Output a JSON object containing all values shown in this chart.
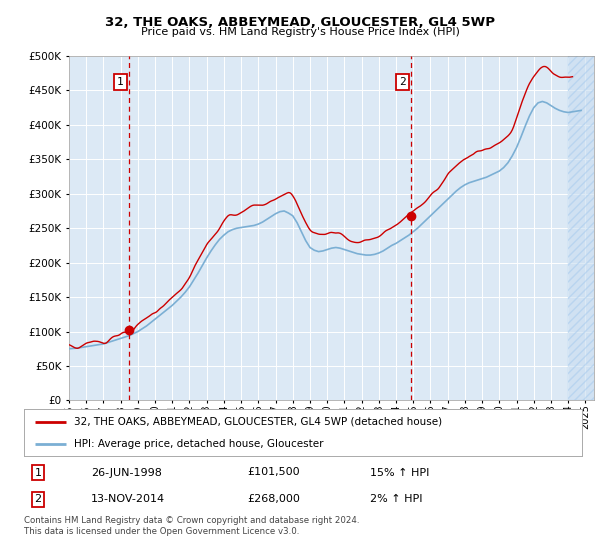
{
  "title": "32, THE OAKS, ABBEYMEAD, GLOUCESTER, GL4 5WP",
  "subtitle": "Price paid vs. HM Land Registry's House Price Index (HPI)",
  "bg_color": "#dce9f5",
  "red_color": "#cc0000",
  "blue_color": "#7bafd4",
  "grid_color": "#ffffff",
  "sale1_date": 1998.49,
  "sale1_price": 101500,
  "sale1_label": "1",
  "sale2_date": 2014.87,
  "sale2_price": 268000,
  "sale2_label": "2",
  "legend_entry1": "32, THE OAKS, ABBEYMEAD, GLOUCESTER, GL4 5WP (detached house)",
  "legend_entry2": "HPI: Average price, detached house, Gloucester",
  "table_row1": [
    "1",
    "26-JUN-1998",
    "£101,500",
    "15% ↑ HPI"
  ],
  "table_row2": [
    "2",
    "13-NOV-2014",
    "£268,000",
    "2% ↑ HPI"
  ],
  "footer": "Contains HM Land Registry data © Crown copyright and database right 2024.\nThis data is licensed under the Open Government Licence v3.0.",
  "ylim": [
    0,
    500000
  ],
  "xlim": [
    1995.0,
    2025.5
  ],
  "yticks": [
    0,
    50000,
    100000,
    150000,
    200000,
    250000,
    300000,
    350000,
    400000,
    450000,
    500000
  ],
  "hpi_years": [
    1995.0,
    1995.25,
    1995.5,
    1995.75,
    1996.0,
    1996.25,
    1996.5,
    1996.75,
    1997.0,
    1997.25,
    1997.5,
    1997.75,
    1998.0,
    1998.25,
    1998.5,
    1998.75,
    1999.0,
    1999.25,
    1999.5,
    1999.75,
    2000.0,
    2000.25,
    2000.5,
    2000.75,
    2001.0,
    2001.25,
    2001.5,
    2001.75,
    2002.0,
    2002.25,
    2002.5,
    2002.75,
    2003.0,
    2003.25,
    2003.5,
    2003.75,
    2004.0,
    2004.25,
    2004.5,
    2004.75,
    2005.0,
    2005.25,
    2005.5,
    2005.75,
    2006.0,
    2006.25,
    2006.5,
    2006.75,
    2007.0,
    2007.25,
    2007.5,
    2007.75,
    2008.0,
    2008.25,
    2008.5,
    2008.75,
    2009.0,
    2009.25,
    2009.5,
    2009.75,
    2010.0,
    2010.25,
    2010.5,
    2010.75,
    2011.0,
    2011.25,
    2011.5,
    2011.75,
    2012.0,
    2012.25,
    2012.5,
    2012.75,
    2013.0,
    2013.25,
    2013.5,
    2013.75,
    2014.0,
    2014.25,
    2014.5,
    2014.75,
    2015.0,
    2015.25,
    2015.5,
    2015.75,
    2016.0,
    2016.25,
    2016.5,
    2016.75,
    2017.0,
    2017.25,
    2017.5,
    2017.75,
    2018.0,
    2018.25,
    2018.5,
    2018.75,
    2019.0,
    2019.25,
    2019.5,
    2019.75,
    2020.0,
    2020.25,
    2020.5,
    2020.75,
    2021.0,
    2021.25,
    2021.5,
    2021.75,
    2022.0,
    2022.25,
    2022.5,
    2022.75,
    2023.0,
    2023.25,
    2023.5,
    2023.75,
    2024.0,
    2024.25,
    2024.5,
    2024.75
  ],
  "hpi_values": [
    75000,
    75500,
    76000,
    77000,
    78000,
    79000,
    80000,
    81000,
    82000,
    84000,
    86000,
    88000,
    90000,
    92000,
    94000,
    97000,
    100000,
    104000,
    108000,
    113000,
    118000,
    123000,
    128000,
    133000,
    138000,
    144000,
    150000,
    157000,
    165000,
    175000,
    185000,
    196000,
    207000,
    217000,
    226000,
    234000,
    240000,
    245000,
    248000,
    250000,
    251000,
    252000,
    253000,
    254000,
    256000,
    259000,
    263000,
    267000,
    271000,
    274000,
    275000,
    272000,
    268000,
    258000,
    245000,
    232000,
    222000,
    218000,
    216000,
    217000,
    219000,
    221000,
    222000,
    221000,
    219000,
    217000,
    215000,
    213000,
    212000,
    211000,
    211000,
    212000,
    214000,
    217000,
    221000,
    225000,
    228000,
    232000,
    236000,
    240000,
    245000,
    250000,
    256000,
    262000,
    268000,
    274000,
    280000,
    286000,
    292000,
    298000,
    304000,
    309000,
    313000,
    316000,
    318000,
    320000,
    322000,
    324000,
    327000,
    330000,
    333000,
    338000,
    345000,
    355000,
    367000,
    382000,
    398000,
    413000,
    425000,
    432000,
    434000,
    432000,
    428000,
    424000,
    421000,
    419000,
    418000,
    419000,
    420000,
    421000
  ],
  "prop_years": [
    1995.0,
    1995.083,
    1995.167,
    1995.25,
    1995.333,
    1995.417,
    1995.5,
    1995.583,
    1995.667,
    1995.75,
    1995.833,
    1995.917,
    1996.0,
    1996.083,
    1996.167,
    1996.25,
    1996.333,
    1996.417,
    1996.5,
    1996.583,
    1996.667,
    1996.75,
    1996.833,
    1996.917,
    1997.0,
    1997.083,
    1997.167,
    1997.25,
    1997.333,
    1997.417,
    1997.5,
    1997.583,
    1997.667,
    1997.75,
    1997.833,
    1997.917,
    1998.0,
    1998.083,
    1998.167,
    1998.25,
    1998.333,
    1998.417,
    1998.5,
    1998.583,
    1998.667,
    1998.75,
    1998.833,
    1998.917,
    1999.0,
    1999.083,
    1999.167,
    1999.25,
    1999.333,
    1999.417,
    1999.5,
    1999.583,
    1999.667,
    1999.75,
    1999.833,
    1999.917,
    2000.0,
    2000.083,
    2000.167,
    2000.25,
    2000.333,
    2000.417,
    2000.5,
    2000.583,
    2000.667,
    2000.75,
    2000.833,
    2000.917,
    2001.0,
    2001.083,
    2001.167,
    2001.25,
    2001.333,
    2001.417,
    2001.5,
    2001.583,
    2001.667,
    2001.75,
    2001.833,
    2001.917,
    2002.0,
    2002.083,
    2002.167,
    2002.25,
    2002.333,
    2002.417,
    2002.5,
    2002.583,
    2002.667,
    2002.75,
    2002.833,
    2002.917,
    2003.0,
    2003.083,
    2003.167,
    2003.25,
    2003.333,
    2003.417,
    2003.5,
    2003.583,
    2003.667,
    2003.75,
    2003.833,
    2003.917,
    2004.0,
    2004.083,
    2004.167,
    2004.25,
    2004.333,
    2004.417,
    2004.5,
    2004.583,
    2004.667,
    2004.75,
    2004.833,
    2004.917,
    2005.0,
    2005.083,
    2005.167,
    2005.25,
    2005.333,
    2005.417,
    2005.5,
    2005.583,
    2005.667,
    2005.75,
    2005.833,
    2005.917,
    2006.0,
    2006.083,
    2006.167,
    2006.25,
    2006.333,
    2006.417,
    2006.5,
    2006.583,
    2006.667,
    2006.75,
    2006.833,
    2006.917,
    2007.0,
    2007.083,
    2007.167,
    2007.25,
    2007.333,
    2007.417,
    2007.5,
    2007.583,
    2007.667,
    2007.75,
    2007.833,
    2007.917,
    2008.0,
    2008.083,
    2008.167,
    2008.25,
    2008.333,
    2008.417,
    2008.5,
    2008.583,
    2008.667,
    2008.75,
    2008.833,
    2008.917,
    2009.0,
    2009.083,
    2009.167,
    2009.25,
    2009.333,
    2009.417,
    2009.5,
    2009.583,
    2009.667,
    2009.75,
    2009.833,
    2009.917,
    2010.0,
    2010.083,
    2010.167,
    2010.25,
    2010.333,
    2010.417,
    2010.5,
    2010.583,
    2010.667,
    2010.75,
    2010.833,
    2010.917,
    2011.0,
    2011.083,
    2011.167,
    2011.25,
    2011.333,
    2011.417,
    2011.5,
    2011.583,
    2011.667,
    2011.75,
    2011.833,
    2011.917,
    2012.0,
    2012.083,
    2012.167,
    2012.25,
    2012.333,
    2012.417,
    2012.5,
    2012.583,
    2012.667,
    2012.75,
    2012.833,
    2012.917,
    2013.0,
    2013.083,
    2013.167,
    2013.25,
    2013.333,
    2013.417,
    2013.5,
    2013.583,
    2013.667,
    2013.75,
    2013.833,
    2013.917,
    2014.0,
    2014.083,
    2014.167,
    2014.25,
    2014.333,
    2014.417,
    2014.5,
    2014.583,
    2014.667,
    2014.75,
    2014.833,
    2014.917,
    2015.0,
    2015.083,
    2015.167,
    2015.25,
    2015.333,
    2015.417,
    2015.5,
    2015.583,
    2015.667,
    2015.75,
    2015.833,
    2015.917,
    2016.0,
    2016.083,
    2016.167,
    2016.25,
    2016.333,
    2016.417,
    2016.5,
    2016.583,
    2016.667,
    2016.75,
    2016.833,
    2016.917,
    2017.0,
    2017.083,
    2017.167,
    2017.25,
    2017.333,
    2017.417,
    2017.5,
    2017.583,
    2017.667,
    2017.75,
    2017.833,
    2017.917,
    2018.0,
    2018.083,
    2018.167,
    2018.25,
    2018.333,
    2018.417,
    2018.5,
    2018.583,
    2018.667,
    2018.75,
    2018.833,
    2018.917,
    2019.0,
    2019.083,
    2019.167,
    2019.25,
    2019.333,
    2019.417,
    2019.5,
    2019.583,
    2019.667,
    2019.75,
    2019.833,
    2019.917,
    2020.0,
    2020.083,
    2020.167,
    2020.25,
    2020.333,
    2020.417,
    2020.5,
    2020.583,
    2020.667,
    2020.75,
    2020.833,
    2020.917,
    2021.0,
    2021.083,
    2021.167,
    2021.25,
    2021.333,
    2021.417,
    2021.5,
    2021.583,
    2021.667,
    2021.75,
    2021.833,
    2021.917,
    2022.0,
    2022.083,
    2022.167,
    2022.25,
    2022.333,
    2022.417,
    2022.5,
    2022.583,
    2022.667,
    2022.75,
    2022.833,
    2022.917,
    2023.0,
    2023.083,
    2023.167,
    2023.25,
    2023.333,
    2023.417,
    2023.5,
    2023.583,
    2023.667,
    2023.75,
    2023.833,
    2023.917,
    2024.0,
    2024.083,
    2024.167,
    2024.25
  ]
}
